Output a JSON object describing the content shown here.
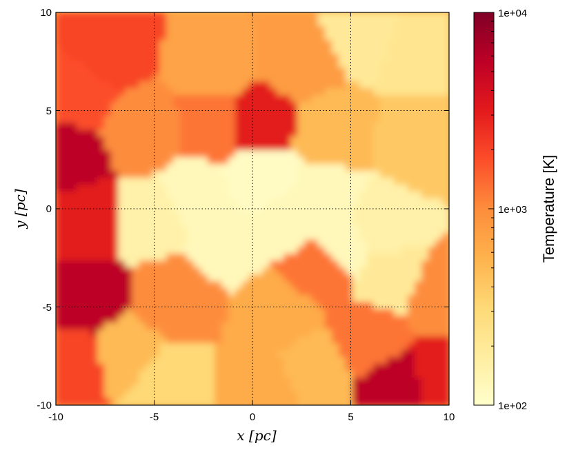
{
  "chart_data": {
    "type": "heatmap",
    "title": "",
    "xlabel": "x [pc]",
    "ylabel": "y [pc]",
    "xlim": [
      -10,
      10
    ],
    "ylim": [
      -10,
      10
    ],
    "x_ticks": [
      -10,
      -5,
      0,
      5,
      10
    ],
    "y_ticks": [
      -10,
      -5,
      0,
      5,
      10
    ],
    "x_tick_labels": [
      "-10",
      "-5",
      "0",
      "5",
      "10"
    ],
    "y_tick_labels": [
      "-10",
      "-5",
      "0",
      "5",
      "10"
    ],
    "grid": true,
    "grid_style": "dotted",
    "colorbar": {
      "label": "Temperature [K]",
      "scale": "log",
      "range": [
        100,
        10000
      ],
      "tick_labels": [
        "1e+04",
        "1e+03",
        "1e+02"
      ],
      "tick_values": [
        10000,
        1000,
        100
      ],
      "colormap": "YlOrRd",
      "colors": [
        "#ffffcc",
        "#ffeda0",
        "#fed976",
        "#feb24c",
        "#fd8d3c",
        "#fc4e2a",
        "#e31a1c",
        "#bd0026",
        "#800026"
      ]
    },
    "field_description": "Voronoi-cell temperature map: warm (~1e3 K) diffuse gas surrounding a cool central cavity (~1e2 K); hot cells (~5e3 K) near left edge and bottom-right corner.",
    "cells": [
      {
        "x": 0.5,
        "y": 1.5,
        "log10T": 2.05
      },
      {
        "x": -3.0,
        "y": 0.5,
        "log10T": 2.1
      },
      {
        "x": 3.5,
        "y": 0.5,
        "log10T": 2.1
      },
      {
        "x": -1.5,
        "y": -1.5,
        "log10T": 2.1
      },
      {
        "x": 4.5,
        "y": -2.0,
        "log10T": 2.1
      },
      {
        "x": 2.0,
        "y": -0.5,
        "log10T": 2.1
      },
      {
        "x": -5.0,
        "y": -0.5,
        "log10T": 2.2
      },
      {
        "x": 6.5,
        "y": -1.0,
        "log10T": 2.2
      },
      {
        "x": 7.0,
        "y": -3.5,
        "log10T": 2.3
      },
      {
        "x": 5.5,
        "y": 9.0,
        "log10T": 2.3
      },
      {
        "x": 8.5,
        "y": 8.0,
        "log10T": 2.35
      },
      {
        "x": -6.5,
        "y": -7.5,
        "log10T": 2.7
      },
      {
        "x": -4.5,
        "y": -9.0,
        "log10T": 2.5
      },
      {
        "x": 0.5,
        "y": -9.0,
        "log10T": 2.8
      },
      {
        "x": 3.0,
        "y": -8.0,
        "log10T": 2.7
      },
      {
        "x": 1.5,
        "y": -5.5,
        "log10T": 2.8
      },
      {
        "x": 4.0,
        "y": 4.0,
        "log10T": 2.7
      },
      {
        "x": 8.5,
        "y": 3.5,
        "log10T": 2.6
      },
      {
        "x": -2.0,
        "y": 7.0,
        "log10T": 2.85
      },
      {
        "x": 2.5,
        "y": 7.5,
        "log10T": 2.9
      },
      {
        "x": -5.5,
        "y": 4.0,
        "log10T": 3.0
      },
      {
        "x": -7.5,
        "y": 8.0,
        "log10T": 3.3
      },
      {
        "x": -9.0,
        "y": 6.0,
        "log10T": 3.25
      },
      {
        "x": -2.0,
        "y": 4.5,
        "log10T": 3.1
      },
      {
        "x": 0.3,
        "y": 4.3,
        "log10T": 3.5
      },
      {
        "x": -4.0,
        "y": -4.5,
        "log10T": 3.0
      },
      {
        "x": 9.5,
        "y": -4.5,
        "log10T": 3.0
      },
      {
        "x": 3.5,
        "y": -3.0,
        "log10T": 3.1
      },
      {
        "x": -9.5,
        "y": 2.5,
        "log10T": 3.75
      },
      {
        "x": -8.5,
        "y": -4.5,
        "log10T": 3.75
      },
      {
        "x": -8.5,
        "y": -0.5,
        "log10T": 3.5
      },
      {
        "x": -9.0,
        "y": -8.0,
        "log10T": 3.3
      },
      {
        "x": 7.5,
        "y": -9.0,
        "log10T": 3.75
      },
      {
        "x": 9.5,
        "y": -8.5,
        "log10T": 3.5
      },
      {
        "x": 6.0,
        "y": -6.5,
        "log10T": 3.1
      }
    ]
  }
}
